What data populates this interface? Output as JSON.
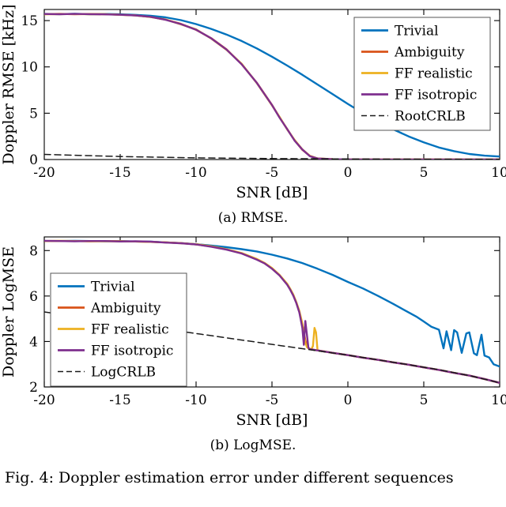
{
  "captions": {
    "a": "(a) RMSE.",
    "b": "(b) LogMSE.",
    "figure": "Fig. 4: Doppler estimation error under different sequences"
  },
  "colors": {
    "trivial": "#0072BD",
    "ambiguity": "#D95319",
    "ff_realistic": "#EDB120",
    "ff_isotropic": "#7E2F8E",
    "crlb": "#1a1a1a"
  },
  "chart_data": [
    {
      "type": "line",
      "title": "",
      "xlabel": "SNR [dB]",
      "ylabel": "Doppler RMSE [kHz]",
      "xlim": [
        -20,
        10
      ],
      "ylim": [
        0,
        16.2
      ],
      "xticks": [
        -20,
        -15,
        -10,
        -5,
        0,
        5,
        10
      ],
      "yticks": [
        0,
        5,
        10,
        15
      ],
      "grid": false,
      "legend_position": "top-right",
      "series": [
        {
          "name": "Trivial",
          "color": "#0072BD",
          "style": "solid",
          "x": [
            -20,
            -19,
            -18,
            -17,
            -16,
            -15,
            -14,
            -13,
            -12,
            -11,
            -10,
            -9,
            -8,
            -7,
            -6,
            -5,
            -4,
            -3,
            -2,
            -1,
            0,
            1,
            2,
            3,
            4,
            5,
            6,
            7,
            8,
            9,
            10
          ],
          "y": [
            15.72,
            15.7,
            15.74,
            15.69,
            15.71,
            15.68,
            15.62,
            15.52,
            15.35,
            15.05,
            14.62,
            14.1,
            13.5,
            12.8,
            12.0,
            11.1,
            10.15,
            9.15,
            8.1,
            7.05,
            6.0,
            5.0,
            4.1,
            3.25,
            2.5,
            1.85,
            1.3,
            0.9,
            0.6,
            0.42,
            0.32
          ]
        },
        {
          "name": "Ambiguity",
          "color": "#D95319",
          "style": "solid",
          "x": [
            -20,
            -19,
            -18,
            -17,
            -16,
            -15,
            -14,
            -13,
            -12,
            -11,
            -10,
            -9,
            -8,
            -7,
            -6,
            -5.5,
            -5,
            -4.5,
            -4,
            -3.5,
            -3,
            -2.5,
            -2,
            -1,
            0,
            2,
            4,
            6,
            8,
            10
          ],
          "y": [
            15.7,
            15.72,
            15.69,
            15.71,
            15.68,
            15.64,
            15.55,
            15.4,
            15.1,
            14.65,
            14.0,
            13.1,
            11.9,
            10.3,
            8.3,
            7.1,
            5.9,
            4.55,
            3.3,
            2.05,
            1.05,
            0.38,
            0.1,
            0.03,
            0.02,
            0.01,
            0.01,
            0.01,
            0.01,
            0.01
          ]
        },
        {
          "name": "FF realistic",
          "color": "#EDB120",
          "style": "solid",
          "x": [
            -20,
            -19,
            -18,
            -17,
            -16,
            -15,
            -14,
            -13,
            -12,
            -11,
            -10,
            -9,
            -8,
            -7,
            -6,
            -5.5,
            -5,
            -4.5,
            -4,
            -3.5,
            -3,
            -2.5,
            -2,
            -1,
            0,
            2,
            4,
            6,
            8,
            10
          ],
          "y": [
            15.68,
            15.7,
            15.71,
            15.69,
            15.7,
            15.62,
            15.57,
            15.38,
            15.12,
            14.6,
            14.05,
            13.05,
            11.85,
            10.35,
            8.25,
            7.05,
            5.85,
            4.6,
            3.25,
            2.1,
            1.1,
            0.4,
            0.12,
            0.03,
            0.02,
            0.01,
            0.01,
            0.01,
            0.01,
            0.01
          ]
        },
        {
          "name": "FF isotropic",
          "color": "#7E2F8E",
          "style": "solid",
          "x": [
            -20,
            -19,
            -18,
            -17,
            -16,
            -15,
            -14,
            -13,
            -12,
            -11,
            -10,
            -9,
            -8,
            -7,
            -6,
            -5.5,
            -5,
            -4.5,
            -4,
            -3.5,
            -3,
            -2.5,
            -2,
            -1,
            0,
            2,
            4,
            6,
            8,
            10
          ],
          "y": [
            15.71,
            15.69,
            15.72,
            15.7,
            15.67,
            15.63,
            15.56,
            15.41,
            15.08,
            14.62,
            14.02,
            13.08,
            11.88,
            10.28,
            8.28,
            7.08,
            5.88,
            4.52,
            3.28,
            2.02,
            1.08,
            0.36,
            0.11,
            0.03,
            0.02,
            0.01,
            0.01,
            0.01,
            0.01,
            0.01
          ]
        },
        {
          "name": "RootCRLB",
          "color": "#1a1a1a",
          "style": "dashed",
          "x": [
            -20,
            -15,
            -10,
            -5,
            0,
            5,
            10
          ],
          "y": [
            0.55,
            0.32,
            0.18,
            0.1,
            0.06,
            0.03,
            0.02
          ]
        }
      ]
    },
    {
      "type": "line",
      "title": "",
      "xlabel": "SNR [dB]",
      "ylabel": "Doppler LogMSE",
      "xlim": [
        -20,
        10
      ],
      "ylim": [
        2,
        8.6
      ],
      "xticks": [
        -20,
        -15,
        -10,
        -5,
        0,
        5,
        10
      ],
      "yticks": [
        2,
        4,
        6,
        8
      ],
      "grid": false,
      "legend_position": "left",
      "series": [
        {
          "name": "Trivial",
          "color": "#0072BD",
          "style": "solid",
          "x": [
            -20,
            -19,
            -18,
            -17,
            -16,
            -15,
            -14,
            -13,
            -12,
            -11,
            -10,
            -9,
            -8,
            -7,
            -6,
            -5,
            -4,
            -3,
            -2,
            -1,
            0,
            1,
            2,
            3,
            4,
            4.5,
            5,
            5.5,
            6,
            6.3,
            6.5,
            6.8,
            7,
            7.2,
            7.5,
            7.8,
            8,
            8.3,
            8.5,
            8.8,
            9,
            9.3,
            9.6,
            10
          ],
          "y": [
            8.42,
            8.42,
            8.43,
            8.42,
            8.41,
            8.42,
            8.4,
            8.39,
            8.36,
            8.33,
            8.28,
            8.22,
            8.15,
            8.06,
            7.96,
            7.82,
            7.65,
            7.45,
            7.2,
            6.93,
            6.62,
            6.33,
            6.0,
            5.65,
            5.28,
            5.1,
            4.88,
            4.65,
            4.52,
            3.7,
            4.45,
            3.62,
            4.5,
            4.4,
            3.5,
            4.35,
            4.4,
            3.48,
            3.4,
            4.3,
            3.38,
            3.3,
            3.0,
            2.9
          ]
        },
        {
          "name": "Ambiguity",
          "color": "#D95319",
          "style": "solid",
          "x": [
            -20,
            -19,
            -18,
            -17,
            -16,
            -15,
            -14,
            -13,
            -12,
            -11,
            -10,
            -9,
            -8,
            -7,
            -6,
            -5.5,
            -5,
            -4.5,
            -4,
            -3.8,
            -3.6,
            -3.4,
            -3.2,
            -3,
            -2.9,
            -2.8,
            -2.7,
            -2.6,
            -2.5,
            -2,
            -1,
            0,
            1,
            2,
            3,
            4,
            5,
            6,
            7,
            8,
            9,
            10
          ],
          "y": [
            8.42,
            8.42,
            8.42,
            8.41,
            8.42,
            8.41,
            8.4,
            8.38,
            8.36,
            8.33,
            8.27,
            8.18,
            8.05,
            7.88,
            7.62,
            7.45,
            7.22,
            6.92,
            6.52,
            6.3,
            6.05,
            5.72,
            5.3,
            4.75,
            4.4,
            4.05,
            3.82,
            3.72,
            3.66,
            3.61,
            3.5,
            3.4,
            3.29,
            3.19,
            3.08,
            2.98,
            2.86,
            2.75,
            2.62,
            2.5,
            2.35,
            2.18
          ]
        },
        {
          "name": "FF realistic",
          "color": "#EDB120",
          "style": "solid",
          "x": [
            -20,
            -19,
            -18,
            -17,
            -16,
            -15,
            -14,
            -13,
            -12,
            -11,
            -10,
            -9,
            -8,
            -7,
            -6,
            -5.5,
            -5,
            -4.5,
            -4,
            -3.8,
            -3.6,
            -3.4,
            -3.2,
            -3,
            -2.9,
            -2.8,
            -2.7,
            -2.6,
            -2.4,
            -2.3,
            -2.2,
            -2.1,
            -2,
            -1.9,
            -1.5,
            -1,
            0,
            1,
            2,
            3,
            4,
            5,
            6,
            7,
            8,
            9,
            10
          ],
          "y": [
            8.42,
            8.43,
            8.42,
            8.41,
            8.41,
            8.41,
            8.4,
            8.38,
            8.36,
            8.32,
            8.28,
            8.19,
            8.06,
            7.89,
            7.63,
            7.46,
            7.23,
            6.93,
            6.54,
            6.32,
            6.07,
            5.74,
            5.35,
            4.8,
            4.3,
            3.95,
            3.75,
            3.7,
            3.66,
            3.8,
            4.6,
            4.4,
            3.62,
            3.6,
            3.56,
            3.5,
            3.4,
            3.29,
            3.19,
            3.08,
            2.98,
            2.86,
            2.75,
            2.62,
            2.5,
            2.35,
            2.18
          ]
        },
        {
          "name": "FF isotropic",
          "color": "#7E2F8E",
          "style": "solid",
          "x": [
            -20,
            -19,
            -18,
            -17,
            -16,
            -15,
            -14,
            -13,
            -12,
            -11,
            -10,
            -9,
            -8,
            -7,
            -6,
            -5.5,
            -5,
            -4.5,
            -4,
            -3.8,
            -3.6,
            -3.4,
            -3.2,
            -3,
            -2.9,
            -2.8,
            -2.7,
            -2.6,
            -2.5,
            -2,
            -1,
            0,
            1,
            2,
            3,
            4,
            5,
            6,
            7,
            8,
            9,
            10
          ],
          "y": [
            8.43,
            8.42,
            8.41,
            8.42,
            8.42,
            8.4,
            8.41,
            8.39,
            8.35,
            8.32,
            8.27,
            8.17,
            8.04,
            7.87,
            7.6,
            7.44,
            7.2,
            6.9,
            6.5,
            6.28,
            6.02,
            5.7,
            5.28,
            4.6,
            3.85,
            4.9,
            4.3,
            3.72,
            3.66,
            3.61,
            3.5,
            3.4,
            3.29,
            3.19,
            3.08,
            2.98,
            2.86,
            2.75,
            2.62,
            2.5,
            2.35,
            2.18
          ]
        },
        {
          "name": "LogCRLB",
          "color": "#1a1a1a",
          "style": "dashed",
          "x": [
            -20,
            -18,
            -16,
            -14,
            -12,
            -10,
            -8,
            -6,
            -4,
            -2,
            0,
            2,
            4,
            6,
            8,
            10
          ],
          "y": [
            5.3,
            5.11,
            4.92,
            4.73,
            4.54,
            4.35,
            4.16,
            3.97,
            3.78,
            3.59,
            3.4,
            3.19,
            2.98,
            2.76,
            2.5,
            2.18
          ]
        }
      ]
    }
  ]
}
